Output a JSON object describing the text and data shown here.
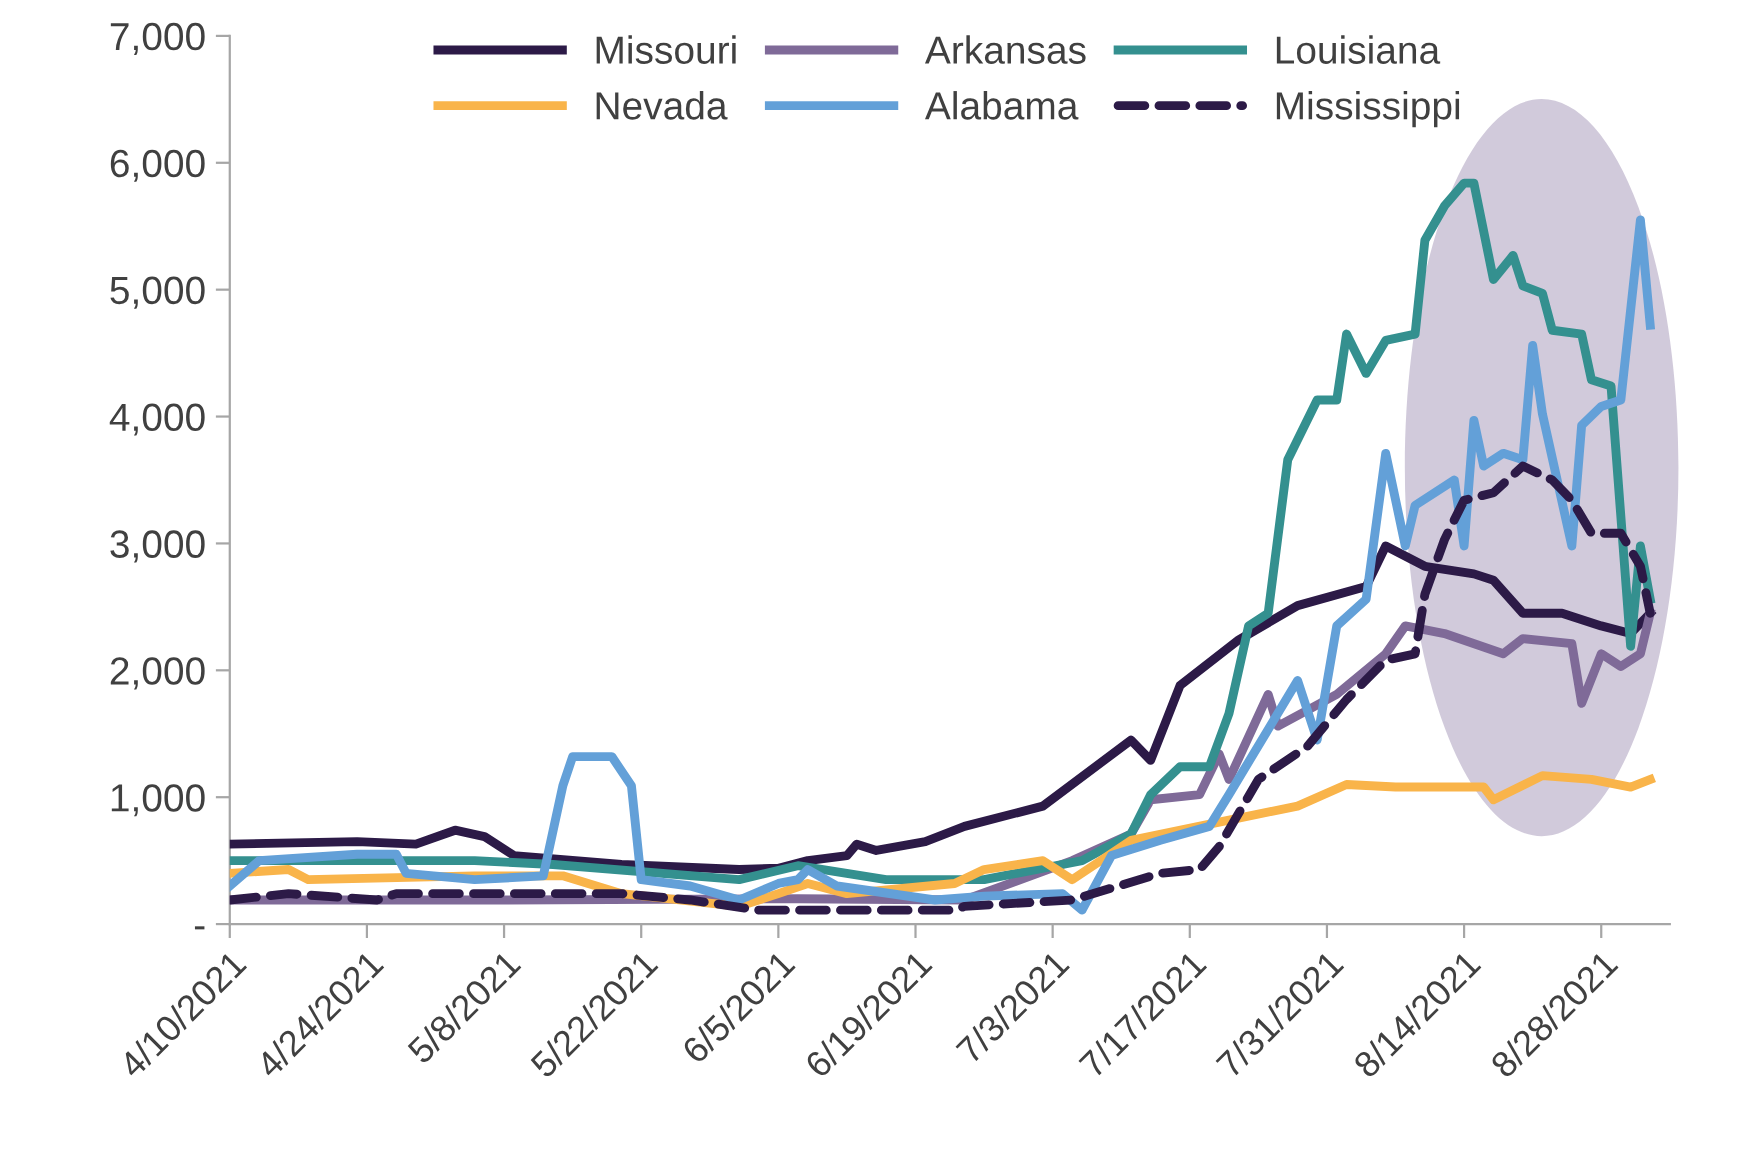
{
  "chart_data": {
    "type": "line",
    "legend": "top",
    "grid": false,
    "marker": "none",
    "xlim": [
      "2021-04-10",
      "2021-09-04"
    ],
    "xticks": [
      {
        "value": "2021-04-10",
        "label": "4/10/2021"
      },
      {
        "value": "2021-04-24",
        "label": "4/24/2021"
      },
      {
        "value": "2021-05-08",
        "label": "5/8/2021"
      },
      {
        "value": "2021-05-22",
        "label": "5/22/2021"
      },
      {
        "value": "2021-06-05",
        "label": "6/5/2021"
      },
      {
        "value": "2021-06-19",
        "label": "6/19/2021"
      },
      {
        "value": "2021-07-03",
        "label": "7/3/2021"
      },
      {
        "value": "2021-07-17",
        "label": "7/17/2021"
      },
      {
        "value": "2021-07-31",
        "label": "7/31/2021"
      },
      {
        "value": "2021-08-14",
        "label": "8/14/2021"
      },
      {
        "value": "2021-08-28",
        "label": "8/28/2021"
      }
    ],
    "ylim": [
      0,
      7000
    ],
    "yticks": [
      {
        "value": 0,
        "label": "-"
      },
      {
        "value": 1000,
        "label": "1,000"
      },
      {
        "value": 2000,
        "label": "2,000"
      },
      {
        "value": 3000,
        "label": "3,000"
      },
      {
        "value": 4000,
        "label": "4,000"
      },
      {
        "value": 5000,
        "label": "5,000"
      },
      {
        "value": 6000,
        "label": "6,000"
      },
      {
        "value": 7000,
        "label": "7,000"
      }
    ],
    "series": [
      {
        "name": "Missouri",
        "color": "#2c1a47",
        "line_style": "solid",
        "x": [
          "2021-04-10",
          "2021-04-23",
          "2021-04-29",
          "2021-05-03",
          "2021-05-06",
          "2021-05-09",
          "2021-05-20",
          "2021-06-01",
          "2021-06-05",
          "2021-06-08",
          "2021-06-12",
          "2021-06-13",
          "2021-06-15",
          "2021-06-20",
          "2021-06-24",
          "2021-07-02",
          "2021-07-11",
          "2021-07-13",
          "2021-07-16",
          "2021-07-22",
          "2021-07-28",
          "2021-08-04",
          "2021-08-06",
          "2021-08-10",
          "2021-08-15",
          "2021-08-17",
          "2021-08-20",
          "2021-08-24",
          "2021-08-28",
          "2021-08-31",
          "2021-09-02"
        ],
        "values": [
          630,
          650,
          630,
          740,
          690,
          540,
          470,
          430,
          440,
          500,
          540,
          630,
          580,
          650,
          770,
          930,
          1450,
          1290,
          1880,
          2240,
          2510,
          2660,
          2980,
          2820,
          2760,
          2710,
          2450,
          2450,
          2350,
          2290,
          2450
        ]
      },
      {
        "name": "Arkansas",
        "color": "#7f6a98",
        "line_style": "solid",
        "x": [
          "2021-04-10",
          "2021-05-08",
          "2021-06-07",
          "2021-06-24",
          "2021-07-05",
          "2021-07-11",
          "2021-07-13",
          "2021-07-18",
          "2021-07-20",
          "2021-07-21",
          "2021-07-25",
          "2021-07-26",
          "2021-08-01",
          "2021-08-06",
          "2021-08-08",
          "2021-08-12",
          "2021-08-18",
          "2021-08-20",
          "2021-08-25",
          "2021-08-26",
          "2021-08-28",
          "2021-08-30",
          "2021-09-01",
          "2021-09-02"
        ],
        "values": [
          190,
          190,
          200,
          190,
          500,
          710,
          980,
          1020,
          1340,
          1140,
          1810,
          1560,
          1810,
          2130,
          2350,
          2290,
          2130,
          2250,
          2210,
          1740,
          2130,
          2030,
          2130,
          2450
        ]
      },
      {
        "name": "Louisiana",
        "color": "#34908f",
        "line_style": "solid",
        "x": [
          "2021-04-10",
          "2021-05-05",
          "2021-05-13",
          "2021-06-01",
          "2021-06-07",
          "2021-06-16",
          "2021-06-26",
          "2021-07-06",
          "2021-07-11",
          "2021-07-13",
          "2021-07-16",
          "2021-07-19",
          "2021-07-21",
          "2021-07-23",
          "2021-07-25",
          "2021-07-27",
          "2021-07-30",
          "2021-08-01",
          "2021-08-02",
          "2021-08-04",
          "2021-08-06",
          "2021-08-09",
          "2021-08-10",
          "2021-08-12",
          "2021-08-14",
          "2021-08-15",
          "2021-08-17",
          "2021-08-19",
          "2021-08-20",
          "2021-08-22",
          "2021-08-23",
          "2021-08-26",
          "2021-08-27",
          "2021-08-29",
          "2021-08-31",
          "2021-09-01",
          "2021-09-02"
        ],
        "values": [
          500,
          500,
          470,
          350,
          460,
          350,
          350,
          500,
          710,
          1020,
          1240,
          1240,
          1660,
          2350,
          2450,
          3660,
          4130,
          4130,
          4650,
          4340,
          4600,
          4650,
          5390,
          5660,
          5840,
          5840,
          5080,
          5270,
          5030,
          4970,
          4680,
          4650,
          4290,
          4240,
          2190,
          2980,
          2560
        ]
      },
      {
        "name": "Nevada",
        "color": "#f9b44a",
        "line_style": "solid",
        "x": [
          "2021-04-10",
          "2021-04-16",
          "2021-04-18",
          "2021-05-05",
          "2021-05-14",
          "2021-05-20",
          "2021-06-01",
          "2021-06-05",
          "2021-06-08",
          "2021-06-12",
          "2021-06-23",
          "2021-06-26",
          "2021-07-02",
          "2021-07-05",
          "2021-07-11",
          "2021-07-21",
          "2021-07-28",
          "2021-08-02",
          "2021-08-07",
          "2021-08-16",
          "2021-08-17",
          "2021-08-22",
          "2021-08-27",
          "2021-08-31",
          "2021-09-02"
        ],
        "values": [
          400,
          430,
          350,
          380,
          380,
          240,
          140,
          240,
          320,
          240,
          320,
          430,
          500,
          350,
          660,
          820,
          930,
          1100,
          1080,
          1080,
          980,
          1170,
          1140,
          1080,
          1140
        ]
      },
      {
        "name": "Alabama",
        "color": "#63a0d8",
        "line_style": "solid",
        "x": [
          "2021-04-10",
          "2021-04-13",
          "2021-04-23",
          "2021-04-27",
          "2021-04-28",
          "2021-05-05",
          "2021-05-12",
          "2021-05-14",
          "2021-05-15",
          "2021-05-19",
          "2021-05-21",
          "2021-05-22",
          "2021-05-27",
          "2021-06-01",
          "2021-06-05",
          "2021-06-07",
          "2021-06-08",
          "2021-06-11",
          "2021-06-21",
          "2021-06-26",
          "2021-07-04",
          "2021-07-06",
          "2021-07-09",
          "2021-07-14",
          "2021-07-19",
          "2021-07-21",
          "2021-07-28",
          "2021-07-30",
          "2021-08-01",
          "2021-08-04",
          "2021-08-06",
          "2021-08-08",
          "2021-08-09",
          "2021-08-13",
          "2021-08-14",
          "2021-08-15",
          "2021-08-16",
          "2021-08-18",
          "2021-08-20",
          "2021-08-21",
          "2021-08-22",
          "2021-08-25",
          "2021-08-26",
          "2021-08-28",
          "2021-08-30",
          "2021-09-01",
          "2021-09-02"
        ],
        "values": [
          300,
          500,
          550,
          550,
          400,
          350,
          380,
          1090,
          1320,
          1320,
          1090,
          350,
          300,
          190,
          320,
          350,
          430,
          300,
          190,
          220,
          240,
          110,
          540,
          660,
          770,
          1020,
          1920,
          1450,
          2350,
          2560,
          3710,
          2980,
          3300,
          3500,
          2980,
          3970,
          3610,
          3710,
          3660,
          4560,
          4020,
          2980,
          3930,
          4080,
          4130,
          5550,
          4720
        ]
      },
      {
        "name": "Mississippi",
        "color": "#2c1a47",
        "line_style": "dashed",
        "x": [
          "2021-04-10",
          "2021-04-16",
          "2021-04-25",
          "2021-04-27",
          "2021-05-20",
          "2021-05-27",
          "2021-06-03",
          "2021-06-23",
          "2021-06-24",
          "2021-07-05",
          "2021-07-14",
          "2021-07-18",
          "2021-07-20",
          "2021-07-24",
          "2021-07-29",
          "2021-08-02",
          "2021-08-06",
          "2021-08-09",
          "2021-08-10",
          "2021-08-12",
          "2021-08-14",
          "2021-08-17",
          "2021-08-20",
          "2021-08-23",
          "2021-08-25",
          "2021-08-27",
          "2021-08-30",
          "2021-09-01",
          "2021-09-02"
        ],
        "values": [
          190,
          240,
          190,
          240,
          240,
          190,
          110,
          110,
          140,
          190,
          400,
          430,
          610,
          1140,
          1400,
          1770,
          2080,
          2130,
          2600,
          3030,
          3340,
          3400,
          3610,
          3500,
          3340,
          3080,
          3080,
          2820,
          2450
        ]
      }
    ]
  }
}
